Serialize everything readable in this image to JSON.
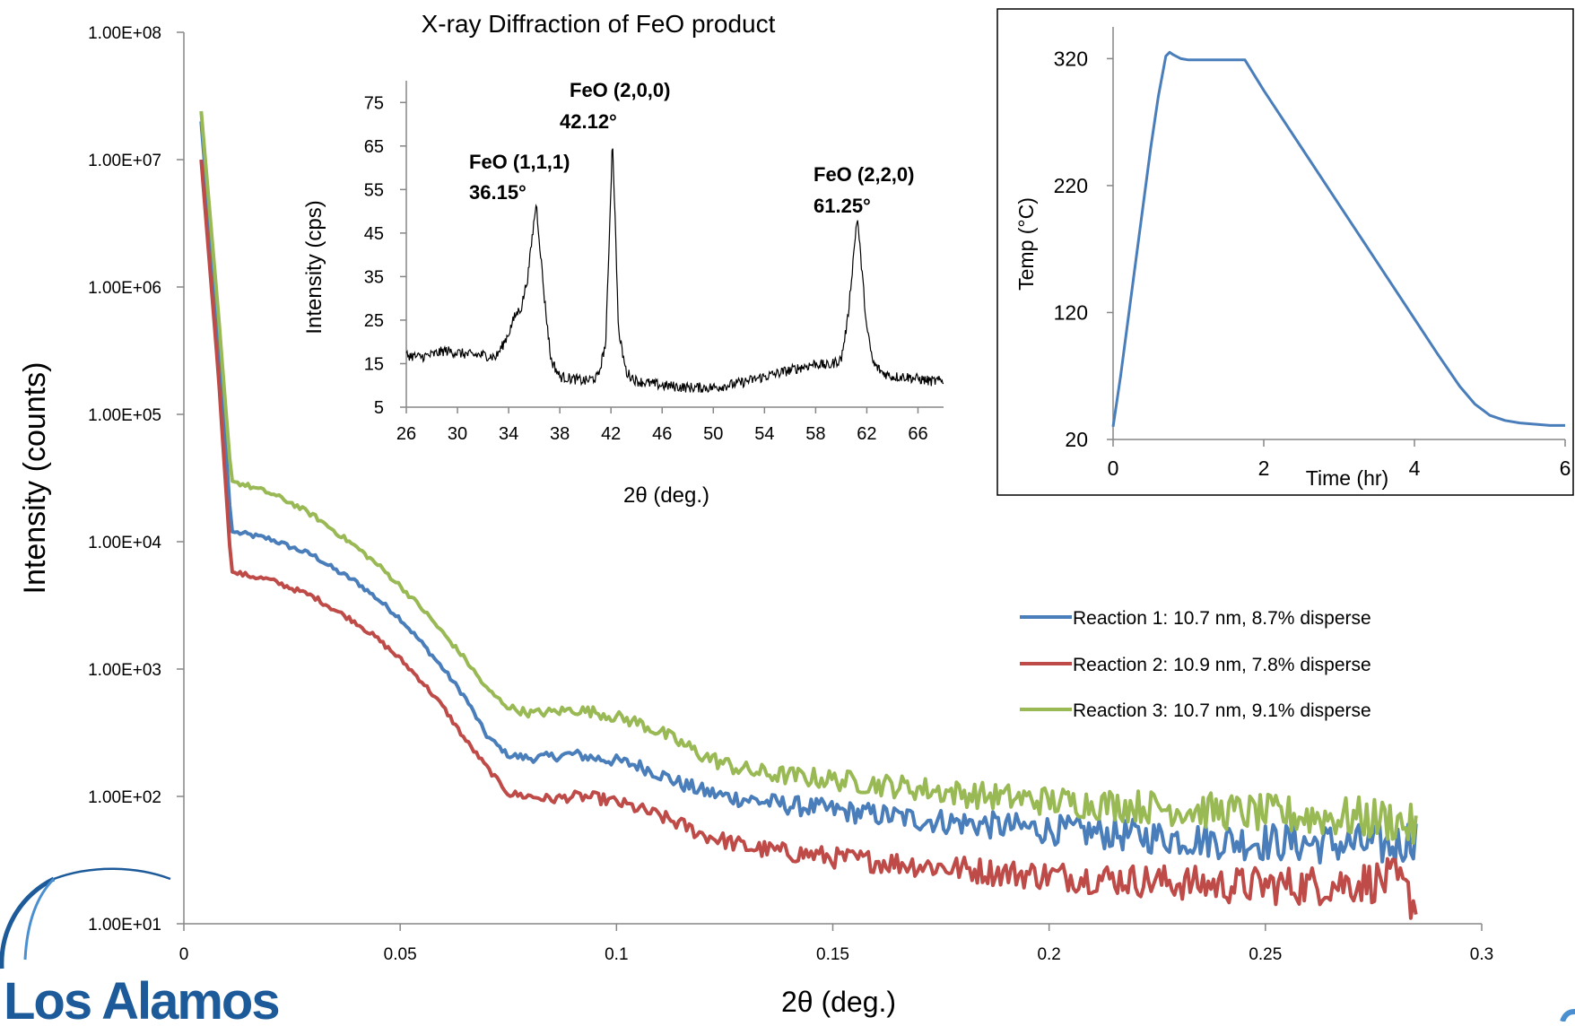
{
  "chart_data": [
    {
      "id": "main",
      "type": "line",
      "title": "",
      "xlabel": "2θ (deg.)",
      "ylabel": "Intensity (counts)",
      "xlim": [
        0,
        0.3
      ],
      "ylim": [
        10,
        100000000
      ],
      "yscale": "log",
      "xticks": [
        "0",
        "0.05",
        "0.1",
        "0.15",
        "0.2",
        "0.25",
        "0.3"
      ],
      "yticks": [
        "1.00E+01",
        "1.00E+02",
        "1.00E+03",
        "1.00E+04",
        "1.00E+05",
        "1.00E+06",
        "1.00E+07",
        "1.00E+08"
      ],
      "grid": false,
      "legend_position": "right",
      "series": [
        {
          "name": "Reaction 1: 10.7 nm, 8.7% disperse",
          "color": "#4a7ebb",
          "x": [
            0.004,
            0.008,
            0.011,
            0.014,
            0.02,
            0.025,
            0.03,
            0.035,
            0.04,
            0.045,
            0.05,
            0.055,
            0.06,
            0.065,
            0.07,
            0.075,
            0.08,
            0.085,
            0.09,
            0.095,
            0.1,
            0.105,
            0.11,
            0.115,
            0.12,
            0.125,
            0.13,
            0.135,
            0.14,
            0.145,
            0.15,
            0.16,
            0.17,
            0.18,
            0.19,
            0.2,
            0.21,
            0.22,
            0.23,
            0.24,
            0.25,
            0.26,
            0.27,
            0.28,
            0.285
          ],
          "y": [
            20000000,
            400000,
            12000,
            11500,
            10500,
            9000,
            7800,
            6000,
            4800,
            3500,
            2500,
            1600,
            1000,
            600,
            300,
            210,
            200,
            205,
            215,
            200,
            190,
            175,
            150,
            125,
            110,
            100,
            95,
            90,
            85,
            82,
            78,
            72,
            66,
            62,
            58,
            55,
            52,
            49,
            47,
            45,
            44,
            43,
            42,
            41,
            50
          ]
        },
        {
          "name": "Reaction 2: 10.9 nm, 7.8% disperse",
          "color": "#be4b48",
          "x": [
            0.004,
            0.008,
            0.011,
            0.014,
            0.02,
            0.025,
            0.03,
            0.035,
            0.04,
            0.045,
            0.05,
            0.055,
            0.06,
            0.065,
            0.07,
            0.075,
            0.08,
            0.085,
            0.09,
            0.095,
            0.1,
            0.105,
            0.11,
            0.115,
            0.12,
            0.125,
            0.13,
            0.135,
            0.14,
            0.145,
            0.15,
            0.16,
            0.17,
            0.18,
            0.19,
            0.2,
            0.21,
            0.22,
            0.23,
            0.24,
            0.25,
            0.26,
            0.27,
            0.28,
            0.285
          ],
          "y": [
            10000000,
            200000,
            5800,
            5500,
            5000,
            4300,
            3700,
            2900,
            2300,
            1700,
            1200,
            800,
            500,
            280,
            170,
            105,
            100,
            95,
            100,
            98,
            90,
            80,
            70,
            60,
            50,
            45,
            40,
            38,
            36,
            35,
            33,
            31,
            29,
            27,
            25,
            24,
            23,
            22,
            21,
            20,
            20,
            20,
            21,
            22,
            14
          ]
        },
        {
          "name": "Reaction 3: 10.7 nm, 9.1% disperse",
          "color": "#98b954",
          "x": [
            0.004,
            0.008,
            0.011,
            0.014,
            0.02,
            0.025,
            0.03,
            0.035,
            0.04,
            0.045,
            0.05,
            0.055,
            0.06,
            0.065,
            0.07,
            0.075,
            0.08,
            0.085,
            0.09,
            0.095,
            0.1,
            0.105,
            0.11,
            0.115,
            0.12,
            0.125,
            0.13,
            0.135,
            0.14,
            0.145,
            0.15,
            0.16,
            0.17,
            0.18,
            0.19,
            0.2,
            0.21,
            0.22,
            0.23,
            0.24,
            0.25,
            0.26,
            0.27,
            0.28,
            0.285
          ],
          "y": [
            24000000,
            600000,
            30000,
            28000,
            24000,
            20000,
            16000,
            12000,
            9000,
            6500,
            4500,
            3000,
            1900,
            1200,
            700,
            500,
            450,
            460,
            480,
            460,
            420,
            380,
            320,
            260,
            210,
            180,
            160,
            150,
            145,
            140,
            135,
            125,
            115,
            105,
            98,
            92,
            88,
            84,
            80,
            76,
            73,
            70,
            68,
            65,
            55
          ]
        }
      ]
    },
    {
      "id": "xrd",
      "type": "line",
      "title": "X-ray Diffraction of FeO product",
      "xlabel": "2θ (deg.)",
      "ylabel": "Intensity (cps)",
      "xlim": [
        26,
        68
      ],
      "ylim": [
        5,
        80
      ],
      "xticks": [
        "26",
        "30",
        "34",
        "38",
        "42",
        "46",
        "50",
        "54",
        "58",
        "62",
        "66"
      ],
      "yticks": [
        "5",
        "15",
        "25",
        "35",
        "45",
        "55",
        "65",
        "75"
      ],
      "grid": false,
      "series": [
        {
          "color": "#000000",
          "x": [
            26,
            27,
            28,
            29,
            30,
            31,
            32,
            33,
            33.5,
            34,
            34.5,
            35,
            35.5,
            36.15,
            36.8,
            37.3,
            38,
            39,
            40,
            41,
            41.6,
            42.12,
            42.6,
            43.2,
            44,
            46,
            48,
            50,
            52,
            54,
            56,
            58,
            59,
            60,
            60.5,
            61.25,
            62,
            62.5,
            63.2,
            64,
            65,
            66,
            67,
            68
          ],
          "y": [
            17,
            16.5,
            17,
            18,
            17.5,
            17,
            17,
            16.5,
            19,
            22,
            26,
            28,
            35,
            52,
            30,
            16,
            12,
            11.5,
            11,
            12,
            20,
            67,
            22,
            13,
            11,
            10,
            9.5,
            9.5,
            10.5,
            12,
            13.5,
            15,
            14.5,
            16,
            25,
            49,
            23,
            15,
            13,
            12,
            12,
            11.5,
            11,
            11
          ]
        }
      ],
      "annotations": [
        {
          "label": "FeO (1,1,1)",
          "value": "36.15°",
          "x": 36.15,
          "y": 52
        },
        {
          "label": "FeO (2,0,0)",
          "value": "42.12°",
          "x": 42.12,
          "y": 67
        },
        {
          "label": "FeO (2,2,0)",
          "value": "61.25°",
          "x": 61.25,
          "y": 49
        }
      ]
    },
    {
      "id": "temp",
      "type": "line",
      "title": "",
      "xlabel": "Time (hr)",
      "ylabel": "Temp (°C)",
      "xlim": [
        0,
        6
      ],
      "ylim": [
        20,
        345
      ],
      "xticks": [
        "0",
        "2",
        "4",
        "6"
      ],
      "yticks": [
        "20",
        "120",
        "220",
        "320"
      ],
      "grid": false,
      "series": [
        {
          "color": "#4a7ebb",
          "x": [
            0,
            0.1,
            0.2,
            0.3,
            0.4,
            0.5,
            0.6,
            0.7,
            0.75,
            0.8,
            0.9,
            1.0,
            1.2,
            1.4,
            1.6,
            1.75,
            2.0,
            2.5,
            3.0,
            3.5,
            4.0,
            4.3,
            4.6,
            4.8,
            5.0,
            5.2,
            5.4,
            5.6,
            5.8,
            6.0
          ],
          "y": [
            30,
            70,
            115,
            160,
            205,
            250,
            290,
            322,
            325,
            323,
            320,
            319,
            319,
            319,
            319,
            319,
            295,
            250,
            205,
            160,
            115,
            88,
            62,
            48,
            39,
            35,
            33,
            32,
            31,
            31
          ]
        }
      ]
    }
  ],
  "logo": {
    "line1": "Los Alamos"
  },
  "colors": {
    "logo_blue": "#1d5a9a",
    "axis": "#868686"
  }
}
